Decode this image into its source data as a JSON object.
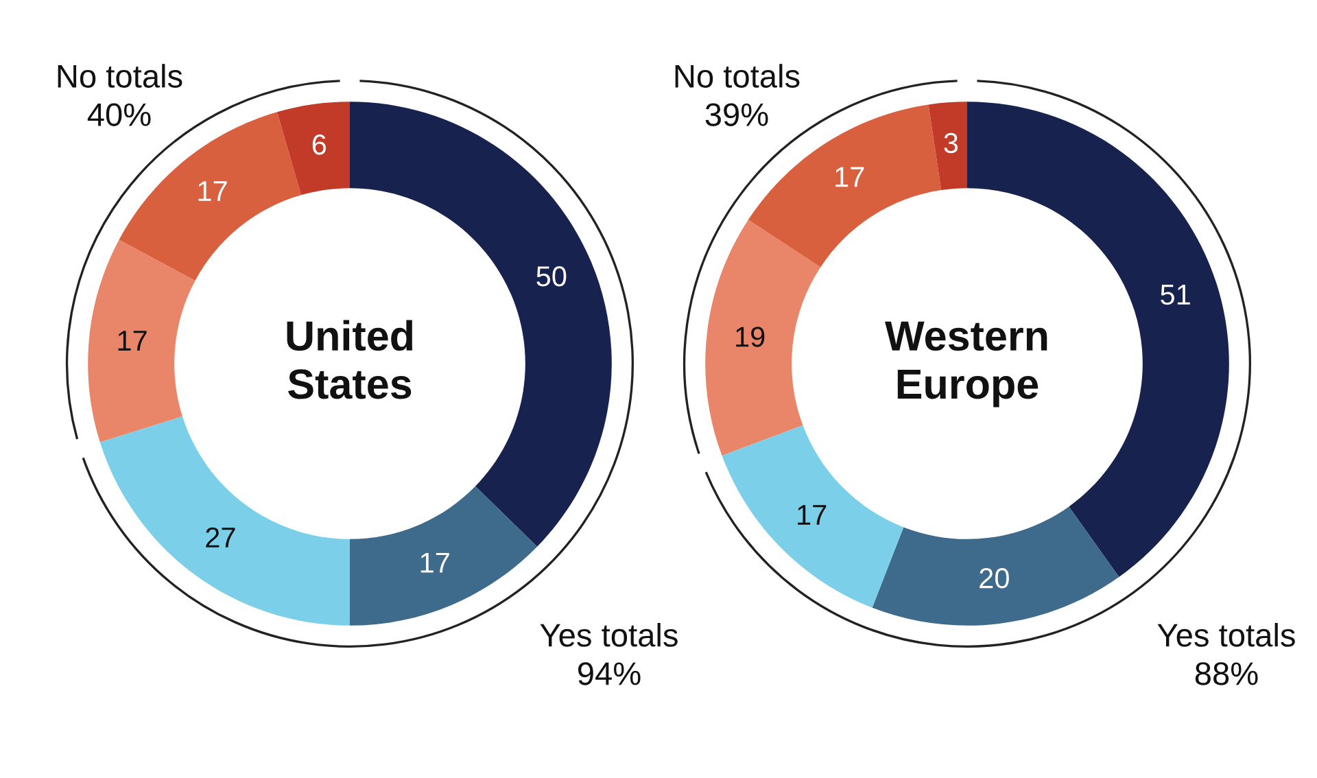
{
  "chart_data": [
    {
      "type": "donut",
      "title": "United\nStates",
      "categories": [
        null,
        null,
        null,
        null,
        null,
        null
      ],
      "values": [
        50,
        17,
        27,
        17,
        17,
        6
      ],
      "colors": [
        "#18224e",
        "#3e6a8b",
        "#7ccfe9",
        "#e9866a",
        "#d8603e",
        "#c23a28"
      ],
      "data_labels": true,
      "annotations": [
        "Yes totals\n94%",
        "No totals\n40%"
      ]
    },
    {
      "type": "donut",
      "title": "Western\nEurope",
      "categories": [
        null,
        null,
        null,
        null,
        null,
        null
      ],
      "values": [
        51,
        20,
        17,
        19,
        17,
        3
      ],
      "colors": [
        "#18224e",
        "#3e6a8b",
        "#7ccfe9",
        "#e9866a",
        "#d8603e",
        "#c23a28"
      ],
      "data_labels": true,
      "annotations": [
        "Yes totals\n88%",
        "No totals\n39%"
      ]
    }
  ]
}
